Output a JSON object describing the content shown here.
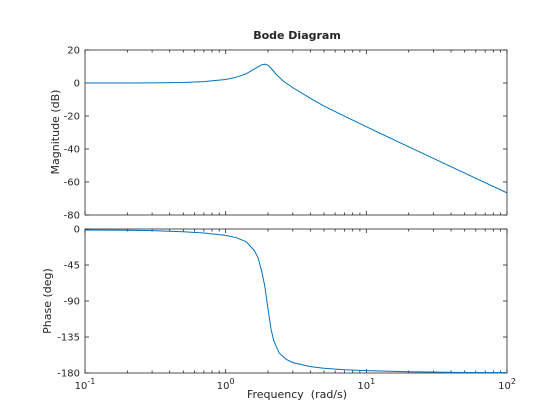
{
  "chart_data": [
    {
      "type": "line",
      "title": "Bode Diagram",
      "ylabel": "Magnitude (dB)",
      "xlabel": "",
      "xscale": "log",
      "xlim": [
        0.1,
        100
      ],
      "ylim": [
        -80,
        20
      ],
      "yticks": [
        20,
        0,
        -20,
        -40,
        -60,
        -80
      ],
      "grid": false,
      "line_color": "#0072bd",
      "series": [
        {
          "x": [
            0.1,
            0.2,
            0.3,
            0.5,
            0.7,
            1.0,
            1.2,
            1.4,
            1.6,
            1.8,
            1.9,
            2.0,
            2.1,
            2.3,
            2.6,
            3.0,
            4.0,
            5.0,
            7.0,
            10,
            20,
            50,
            100
          ],
          "values": [
            0,
            0,
            0.1,
            0.3,
            0.8,
            2.1,
            3.6,
            5.6,
            8.5,
            11.0,
            11.4,
            10.8,
            9.0,
            5.0,
            0.8,
            -2.8,
            -9.3,
            -14.0,
            -20.1,
            -26.5,
            -38.7,
            -54.6,
            -66.6
          ]
        }
      ]
    },
    {
      "type": "line",
      "title": "",
      "ylabel": "Phase (deg)",
      "xlabel": "Frequency  (rad/s)",
      "xscale": "log",
      "xlim": [
        0.1,
        100
      ],
      "ylim": [
        -180,
        0
      ],
      "yticks": [
        0,
        -45,
        -90,
        -135,
        -180
      ],
      "xticks": [
        {
          "value": 0.1,
          "base": "10",
          "exp": "-1"
        },
        {
          "value": 1,
          "base": "10",
          "exp": "0"
        },
        {
          "value": 10,
          "base": "10",
          "exp": "1"
        },
        {
          "value": 100,
          "base": "10",
          "exp": "2"
        }
      ],
      "grid": false,
      "line_color": "#0072bd",
      "series": [
        {
          "x": [
            0.1,
            0.2,
            0.3,
            0.5,
            0.7,
            1.0,
            1.2,
            1.4,
            1.6,
            1.7,
            1.8,
            1.9,
            2.0,
            2.1,
            2.2,
            2.4,
            2.7,
            3.0,
            4.0,
            5.0,
            7.0,
            10,
            20,
            50,
            100
          ],
          "values": [
            -1.2,
            -1.5,
            -2.0,
            -3.4,
            -5.0,
            -8.0,
            -11.0,
            -16.0,
            -27.0,
            -36.0,
            -52.0,
            -72.0,
            -100.0,
            -125.0,
            -140.0,
            -155.0,
            -163.0,
            -167.0,
            -172.0,
            -174.0,
            -176.0,
            -177.0,
            -178.5,
            -179.3,
            -179.6
          ]
        }
      ]
    }
  ]
}
